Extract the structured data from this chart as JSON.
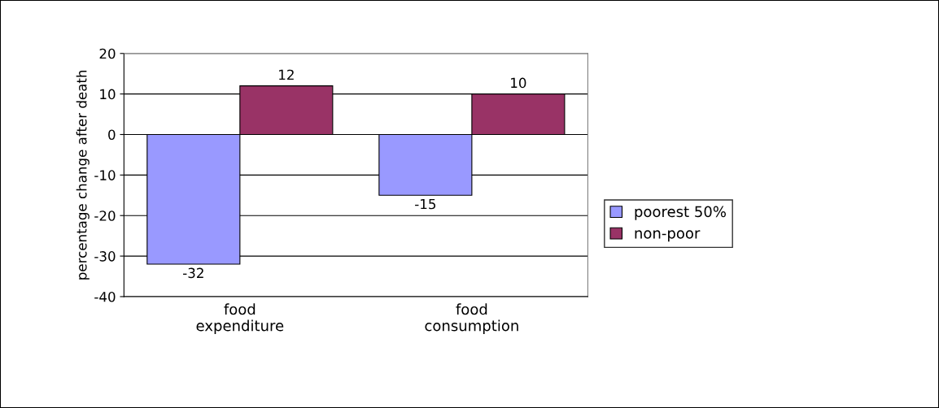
{
  "chart_data": {
    "type": "bar",
    "ylabel": "percentage change after death",
    "categories": [
      "food\nexpenditure",
      "food\nconsumption"
    ],
    "series": [
      {
        "name": "poorest 50%",
        "color": "#9999ff",
        "values": [
          -32,
          -15
        ]
      },
      {
        "name": "non-poor",
        "color": "#993366",
        "values": [
          12,
          10
        ]
      }
    ],
    "ylim": [
      -40,
      20
    ],
    "yticks": [
      -40,
      -30,
      -20,
      -10,
      0,
      10,
      20
    ],
    "grid": "y",
    "legend": "right",
    "data_labels": true
  }
}
